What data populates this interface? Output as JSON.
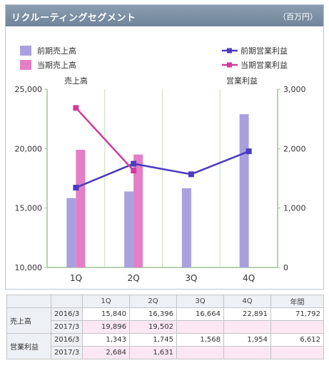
{
  "header": {
    "title": "リクルーティングセグメント",
    "unit": "（百万円）"
  },
  "legend": [
    {
      "label": "前期売上高",
      "kind": "bar",
      "color": "#aaa0e0"
    },
    {
      "label": "当期売上高",
      "kind": "bar",
      "color": "#e27fc7"
    },
    {
      "label": "前期営業利益",
      "kind": "line",
      "color": "#4b3bc1"
    },
    {
      "label": "当期営業利益",
      "kind": "line",
      "color": "#cf3b9e"
    }
  ],
  "chart_data": {
    "type": "bar",
    "categories": [
      "1Q",
      "2Q",
      "3Q",
      "4Q"
    ],
    "left_axis": {
      "label": "売上高",
      "range": [
        10000,
        25000
      ],
      "ticks": [
        "10,000",
        "15,000",
        "20,000",
        "25,000"
      ]
    },
    "right_axis": {
      "label": "営業利益",
      "range": [
        0,
        3000
      ],
      "ticks": [
        "0",
        "1,000",
        "2,000",
        "3,000"
      ]
    },
    "series": [
      {
        "name": "前期売上高",
        "type": "bar",
        "axis": "left",
        "color": "#aaa0e0",
        "values": [
          15840,
          16396,
          16664,
          22891
        ]
      },
      {
        "name": "当期売上高",
        "type": "bar",
        "axis": "left",
        "color": "#e27fc7",
        "values": [
          19896,
          19502,
          null,
          null
        ]
      },
      {
        "name": "前期営業利益",
        "type": "line",
        "axis": "right",
        "color": "#4b3bc1",
        "values": [
          1343,
          1745,
          1568,
          1954
        ]
      },
      {
        "name": "当期営業利益",
        "type": "line",
        "axis": "right",
        "color": "#cf3b9e",
        "values": [
          2684,
          1631,
          null,
          null
        ]
      }
    ],
    "grid": "vertical"
  },
  "table": {
    "headers": [
      "",
      "",
      "1Q",
      "2Q",
      "3Q",
      "4Q",
      "年間"
    ],
    "rows": [
      {
        "metric": "売上高",
        "year": "2016/3",
        "values": [
          "15,840",
          "16,396",
          "16,664",
          "22,891",
          "71,792"
        ]
      },
      {
        "metric": "",
        "year": "2017/3",
        "values": [
          "19,896",
          "19,502",
          "",
          "",
          ""
        ]
      },
      {
        "metric": "営業利益",
        "year": "2016/3",
        "values": [
          "1,343",
          "1,745",
          "1,568",
          "1,954",
          "6,612"
        ]
      },
      {
        "metric": "",
        "year": "2017/3",
        "values": [
          "2,684",
          "1,631",
          "",
          "",
          ""
        ]
      }
    ]
  }
}
